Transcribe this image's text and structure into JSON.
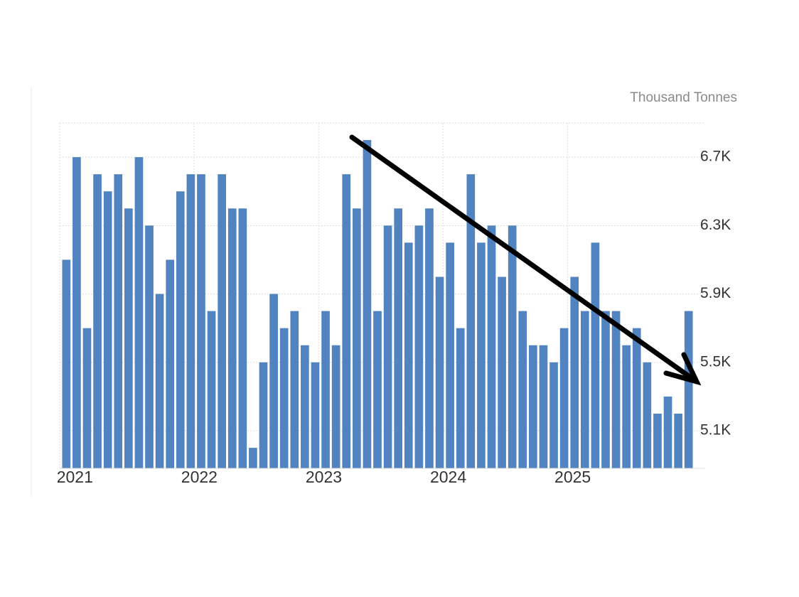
{
  "chart_data": {
    "type": "bar",
    "unit_label": "Thousand Tonnes",
    "categories": [
      "2021",
      null,
      null,
      null,
      null,
      null,
      null,
      null,
      null,
      null,
      null,
      null,
      "2022",
      null,
      null,
      null,
      null,
      null,
      null,
      null,
      null,
      null,
      null,
      null,
      "2023",
      null,
      null,
      null,
      null,
      null,
      null,
      null,
      null,
      null,
      null,
      null,
      "2024",
      null,
      null,
      null,
      null,
      null,
      null,
      null,
      null,
      null,
      null,
      null,
      "2025",
      null,
      null,
      null,
      null,
      null,
      null,
      null,
      null,
      null,
      null,
      null,
      null
    ],
    "values": [
      6100,
      6700,
      5700,
      6600,
      6500,
      6600,
      6400,
      6700,
      6300,
      5900,
      6100,
      6500,
      6600,
      6600,
      5800,
      6600,
      6400,
      6400,
      5000,
      5500,
      5900,
      5700,
      5800,
      5600,
      5500,
      5800,
      5600,
      6600,
      6400,
      6800,
      5800,
      6300,
      6400,
      6200,
      6300,
      6400,
      6000,
      6200,
      5700,
      6600,
      6200,
      6300,
      6000,
      6300,
      5800,
      5600,
      5600,
      5500,
      5700,
      6000,
      5800,
      6200,
      5800,
      5800,
      5600,
      5700,
      5500,
      5200,
      5300,
      5200,
      5800
    ],
    "color": "#5083c0",
    "ylim": [
      4880,
      6900
    ],
    "yticks": [
      {
        "value": 5100,
        "label": "5.1K"
      },
      {
        "value": 5500,
        "label": "5.5K"
      },
      {
        "value": 5900,
        "label": "5.9K"
      },
      {
        "value": 6300,
        "label": "6.3K"
      },
      {
        "value": 6700,
        "label": "6.7K"
      }
    ],
    "grid": true
  }
}
